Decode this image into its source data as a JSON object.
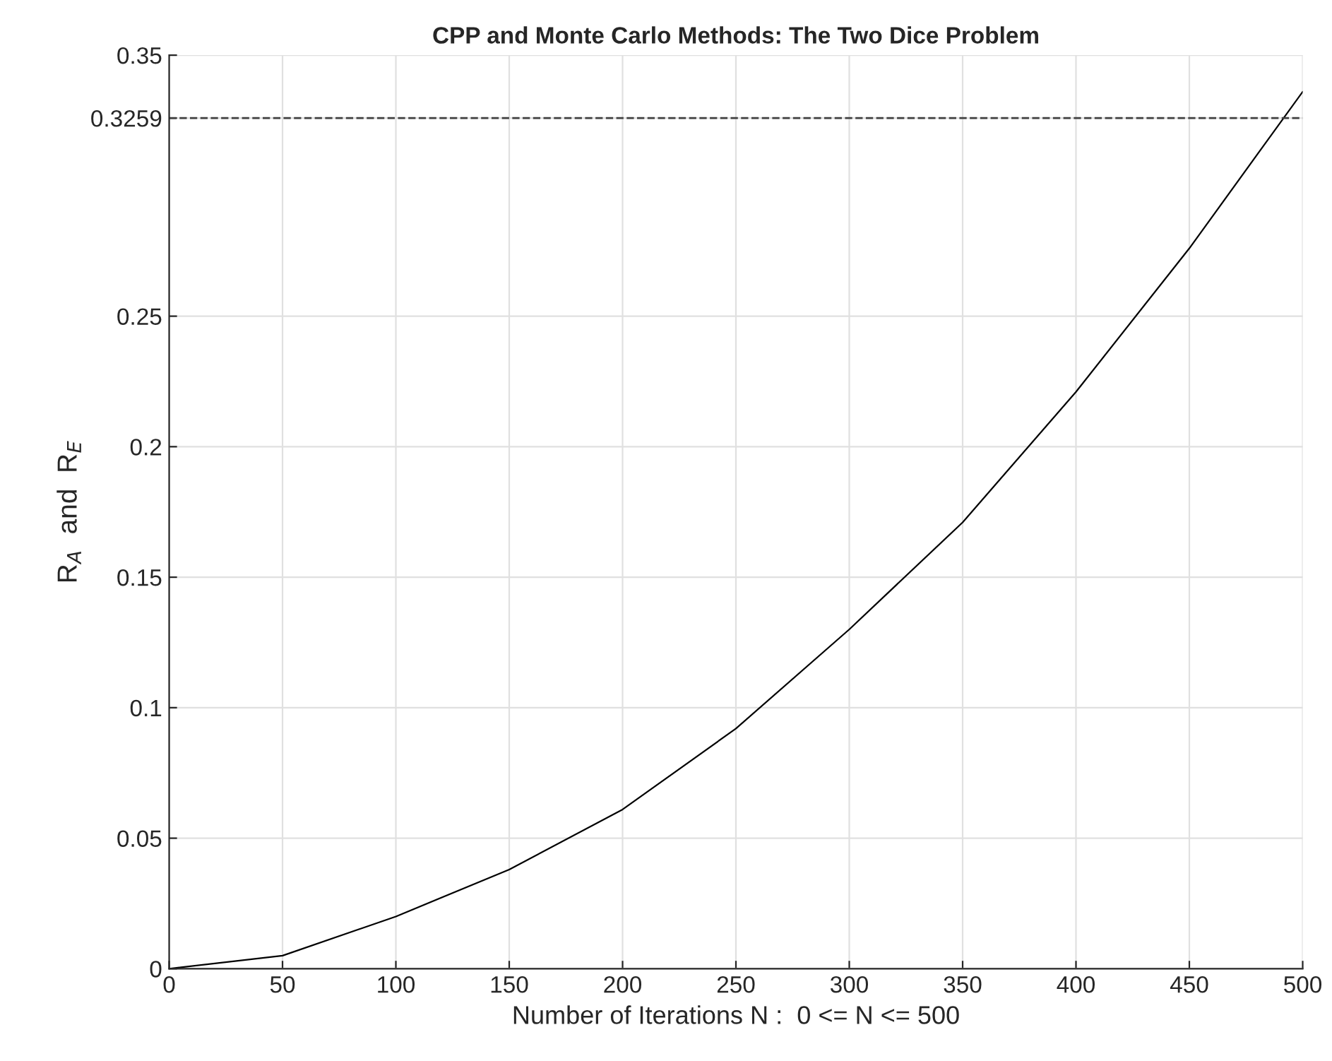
{
  "chart_data": {
    "type": "line",
    "title": "CPP and Monte Carlo Methods: The Two Dice Problem",
    "xlabel": "Number of Iterations N :  0 <= N <= 500",
    "ylabel": "R$_{A}$  and  R$_{E}$",
    "x": [
      0,
      50,
      100,
      150,
      200,
      250,
      300,
      350,
      400,
      450,
      500
    ],
    "series": [
      {
        "color": "#000000",
        "values": [
          0,
          0.005,
          0.02,
          0.038,
          0.061,
          0.092,
          0.13,
          0.171,
          0.221,
          0.276,
          0.336
        ]
      }
    ],
    "xlim": [
      0,
      500
    ],
    "xticks": [
      0,
      50,
      100,
      150,
      200,
      250,
      300,
      350,
      400,
      450,
      500
    ],
    "ylim": [
      0,
      0.35
    ],
    "yticks": [
      0,
      0.05,
      0.1,
      0.15,
      0.2,
      0.25,
      0.3259,
      0.35
    ],
    "ref_lines": [
      {
        "axis": "y",
        "value": 0.3259,
        "color": "#404040",
        "line_style": "dashed"
      }
    ],
    "grid": true,
    "marker": "none",
    "line_style": "solid"
  }
}
